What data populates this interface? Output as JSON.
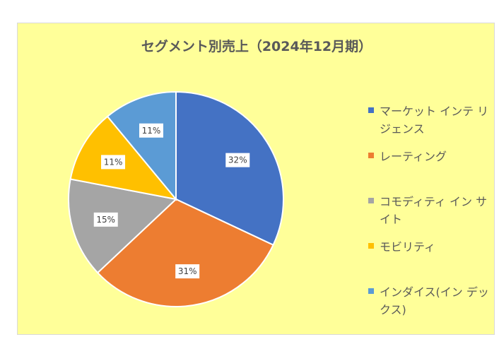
{
  "chart_data": {
    "type": "pie",
    "title": "セグメント別売上（2024年12月期）",
    "categories": [
      "マーケット インテリジェンス",
      "レーティング",
      "コモディティ インサイト",
      "モビリティ",
      "インダイス(インデックス)"
    ],
    "legend_labels": [
      "マーケット インテ リジェンス",
      "レーティング",
      "コモディティ イン サイト",
      "モビリティ",
      "インダイス(イン デックス)"
    ],
    "values": [
      32,
      31,
      15,
      11,
      11
    ],
    "data_labels": [
      "32%",
      "31%",
      "15%",
      "11%",
      "11%"
    ],
    "colors": [
      "#4472c4",
      "#ed7d31",
      "#a5a5a5",
      "#ffc000",
      "#5b9bd5"
    ],
    "legend_position": "right",
    "unit": "%"
  }
}
